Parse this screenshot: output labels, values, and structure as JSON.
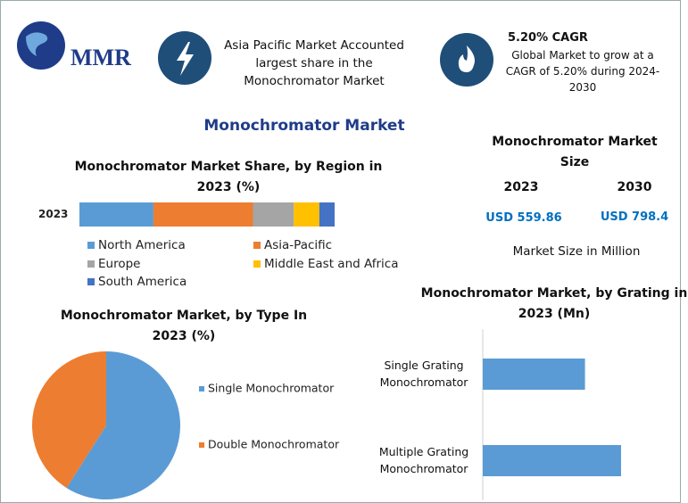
{
  "header": {
    "logo": "MMR",
    "highlight": "Asia Pacific Market Accounted largest share in the Monochromator Market",
    "cagr_title": "5.20% CAGR",
    "cagr_text": "Global Market to grow at a CAGR of 5.20% during 2024-2030",
    "title": "Monochromator Market"
  },
  "market_size": {
    "title": "Monochromator Market Size",
    "years": [
      "2023",
      "2030"
    ],
    "values": [
      "USD 559.86",
      "USD 798.4"
    ],
    "note": "Market Size in Million"
  },
  "chart_data": [
    {
      "type": "stacked-bar",
      "title": "Monochromator Market Share, by Region in 2023 (%)",
      "categories": [
        "2023"
      ],
      "series": [
        {
          "name": "North America",
          "color": "#5b9bd5",
          "values": [
            29
          ]
        },
        {
          "name": "Asia-Pacific",
          "color": "#ed7d31",
          "values": [
            39
          ]
        },
        {
          "name": "Europe",
          "color": "#a5a5a5",
          "values": [
            16
          ]
        },
        {
          "name": "Middle East and Africa",
          "color": "#ffc000",
          "values": [
            10
          ]
        },
        {
          "name": "South America",
          "color": "#4472c4",
          "values": [
            6
          ]
        }
      ]
    },
    {
      "type": "pie",
      "title": "Monochromator Market, by Type In 2023 (%)",
      "categories": [
        "Single Monochromator",
        "Double Monochromator"
      ],
      "values": [
        59,
        41
      ],
      "colors": [
        "#5b9bd5",
        "#ed7d31"
      ]
    },
    {
      "type": "hbar",
      "title": "Monochromator Market, by Grating in 2023 (Mn)",
      "categories": [
        "Single Grating Monochromator",
        "Multiple Grating Monochromator"
      ],
      "values": [
        238,
        322
      ],
      "color": "#5b9bd5"
    }
  ]
}
